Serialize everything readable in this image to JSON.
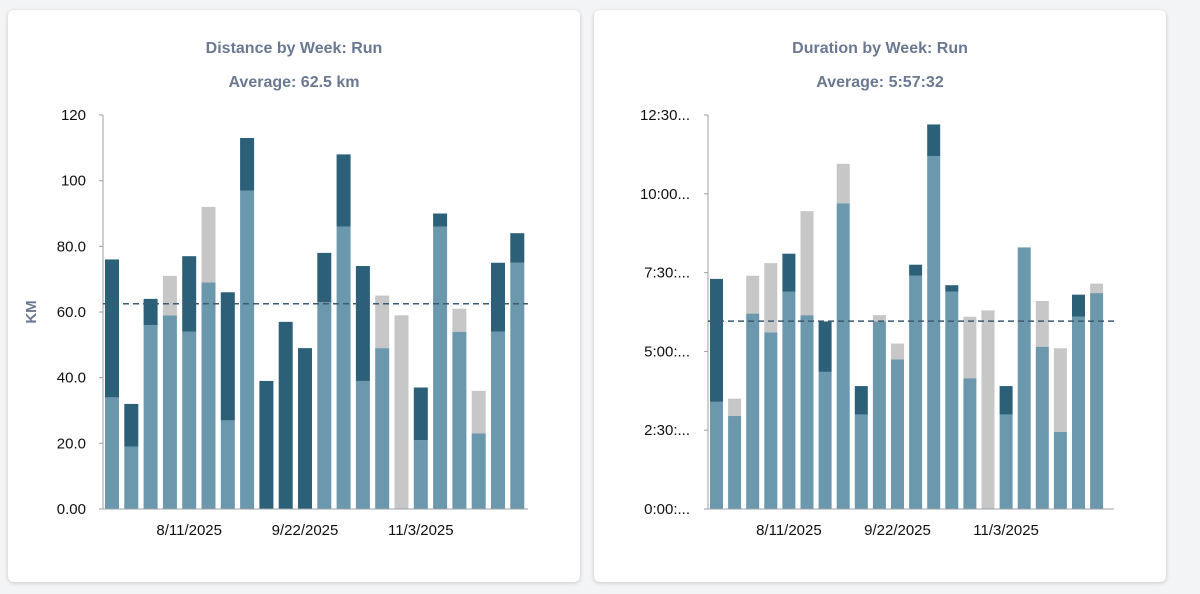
{
  "charts": [
    {
      "title": "Distance by Week: Run",
      "subtitle": "Average: 62.5 km"
    },
    {
      "title": "Duration by Week: Run",
      "subtitle": "Average: 5:57:32"
    }
  ],
  "chart_data": [
    {
      "type": "bar",
      "stacked": true,
      "title": "Distance by Week: Run",
      "subtitle": "Average: 62.5 km",
      "xlabel": "",
      "ylabel": "KM",
      "ylim": [
        0,
        120
      ],
      "y_ticks": [
        0,
        20,
        40,
        60,
        80,
        100,
        120
      ],
      "y_tick_labels": [
        "0.00",
        "20.0",
        "40.0",
        "60.0",
        "80.0",
        "100",
        "120"
      ],
      "x_tick_labels": [
        {
          "index": 4,
          "label": "8/11/2025"
        },
        {
          "index": 10,
          "label": "9/22/2025"
        },
        {
          "index": 16,
          "label": "11/3/2025"
        }
      ],
      "average": 62.5,
      "colors": {
        "base": "#6b98ad",
        "top": "#2c5f78",
        "gray": "#c7c7c7"
      },
      "bars": [
        {
          "base": 34,
          "top": 42,
          "gray": 0
        },
        {
          "base": 19,
          "top": 13,
          "gray": 0
        },
        {
          "base": 56,
          "top": 8,
          "gray": 0
        },
        {
          "base": 59,
          "top": 0,
          "gray": 12
        },
        {
          "base": 54,
          "top": 23,
          "gray": 0
        },
        {
          "base": 69,
          "top": 0,
          "gray": 23
        },
        {
          "base": 27,
          "top": 39,
          "gray": 0
        },
        {
          "base": 97,
          "top": 16,
          "gray": 0
        },
        {
          "base": 0,
          "top": 39,
          "gray": 0
        },
        {
          "base": 0,
          "top": 57,
          "gray": 0
        },
        {
          "base": 0,
          "top": 49,
          "gray": 0
        },
        {
          "base": 63,
          "top": 15,
          "gray": 0
        },
        {
          "base": 86,
          "top": 22,
          "gray": 0
        },
        {
          "base": 39,
          "top": 35,
          "gray": 0
        },
        {
          "base": 49,
          "top": 0,
          "gray": 16
        },
        {
          "base": 0,
          "top": 0,
          "gray": 59
        },
        {
          "base": 21,
          "top": 16,
          "gray": 0
        },
        {
          "base": 86,
          "top": 4,
          "gray": 0
        },
        {
          "base": 54,
          "top": 0,
          "gray": 7
        },
        {
          "base": 23,
          "top": 0,
          "gray": 13
        },
        {
          "base": 54,
          "top": 21,
          "gray": 0
        },
        {
          "base": 75,
          "top": 9,
          "gray": 0
        }
      ]
    },
    {
      "type": "bar",
      "stacked": true,
      "title": "Duration by Week: Run",
      "subtitle": "Average: 5:57:32",
      "xlabel": "",
      "ylabel": "",
      "ylim": [
        0,
        12.5
      ],
      "y_unit": "hours",
      "y_ticks": [
        0,
        2.5,
        5,
        7.5,
        10,
        12.5
      ],
      "y_tick_labels": [
        "0:00:...",
        "2:30:...",
        "5:00:...",
        "7:30:...",
        "10:00...",
        "12:30..."
      ],
      "x_tick_labels": [
        {
          "index": 4,
          "label": "8/11/2025"
        },
        {
          "index": 10,
          "label": "9/22/2025"
        },
        {
          "index": 16,
          "label": "11/3/2025"
        }
      ],
      "average": 5.96,
      "colors": {
        "base": "#6b98ad",
        "top": "#2c5f78",
        "gray": "#c7c7c7"
      },
      "bars": [
        {
          "base": 3.4,
          "top": 3.9,
          "gray": 0
        },
        {
          "base": 2.95,
          "top": 0,
          "gray": 0.55
        },
        {
          "base": 6.2,
          "top": 0,
          "gray": 1.2
        },
        {
          "base": 5.6,
          "top": 0,
          "gray": 2.2
        },
        {
          "base": 6.9,
          "top": 1.2,
          "gray": 0
        },
        {
          "base": 6.15,
          "top": 0,
          "gray": 3.3
        },
        {
          "base": 4.35,
          "top": 1.6,
          "gray": 0
        },
        {
          "base": 9.7,
          "top": 0,
          "gray": 1.25
        },
        {
          "base": 3.0,
          "top": 0.9,
          "gray": 0
        },
        {
          "base": 5.95,
          "top": 0,
          "gray": 0.2
        },
        {
          "base": 4.75,
          "top": 0,
          "gray": 0.5
        },
        {
          "base": 7.4,
          "top": 0.35,
          "gray": 0
        },
        {
          "base": 11.2,
          "top": 1.0,
          "gray": 0
        },
        {
          "base": 6.9,
          "top": 0.2,
          "gray": 0
        },
        {
          "base": 4.15,
          "top": 0,
          "gray": 1.95
        },
        {
          "base": 0,
          "top": 0,
          "gray": 6.3
        },
        {
          "base": 3.0,
          "top": 0.9,
          "gray": 0
        },
        {
          "base": 8.3,
          "top": 0,
          "gray": 0
        },
        {
          "base": 5.15,
          "top": 0,
          "gray": 1.45
        },
        {
          "base": 2.45,
          "top": 0,
          "gray": 2.65
        },
        {
          "base": 6.1,
          "top": 0.7,
          "gray": 0
        },
        {
          "base": 6.85,
          "top": 0,
          "gray": 0.3
        }
      ]
    }
  ]
}
